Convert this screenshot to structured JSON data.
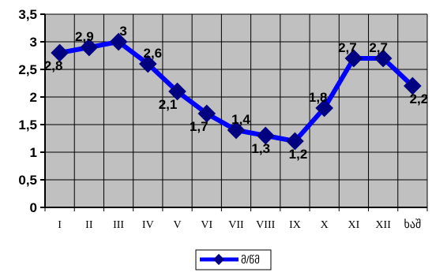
{
  "chart_data": {
    "type": "line",
    "categories": [
      "I",
      "II",
      "III",
      "IV",
      "V",
      "VI",
      "VII",
      "VIII",
      "IX",
      "X",
      "XI",
      "XII",
      "ხაშ"
    ],
    "series": [
      {
        "name": "მ/წმ",
        "values": [
          2.8,
          2.9,
          3,
          2.6,
          2.1,
          1.7,
          1.4,
          1.3,
          1.2,
          1.8,
          2.7,
          2.7,
          2.2
        ],
        "labels": [
          "2,8",
          "2,9",
          "3",
          "2,6",
          "2,1",
          "1,7",
          "1,4",
          "1,3",
          "1,2",
          "1,8",
          "2,7",
          "2,7",
          "2,2"
        ]
      }
    ],
    "y_tick_labels": [
      "0",
      "0,5",
      "1",
      "1,5",
      "2",
      "2,5",
      "3",
      "3,5"
    ],
    "y_ticks": [
      0,
      0.5,
      1,
      1.5,
      2,
      2.5,
      3,
      3.5
    ],
    "ylim": [
      0,
      3.5
    ],
    "grid": true,
    "legend_position": "bottom",
    "colors": {
      "series": "#0000ff",
      "marker": "#000080",
      "plot_background": "#c0c0c0",
      "grid": "#000000"
    }
  }
}
